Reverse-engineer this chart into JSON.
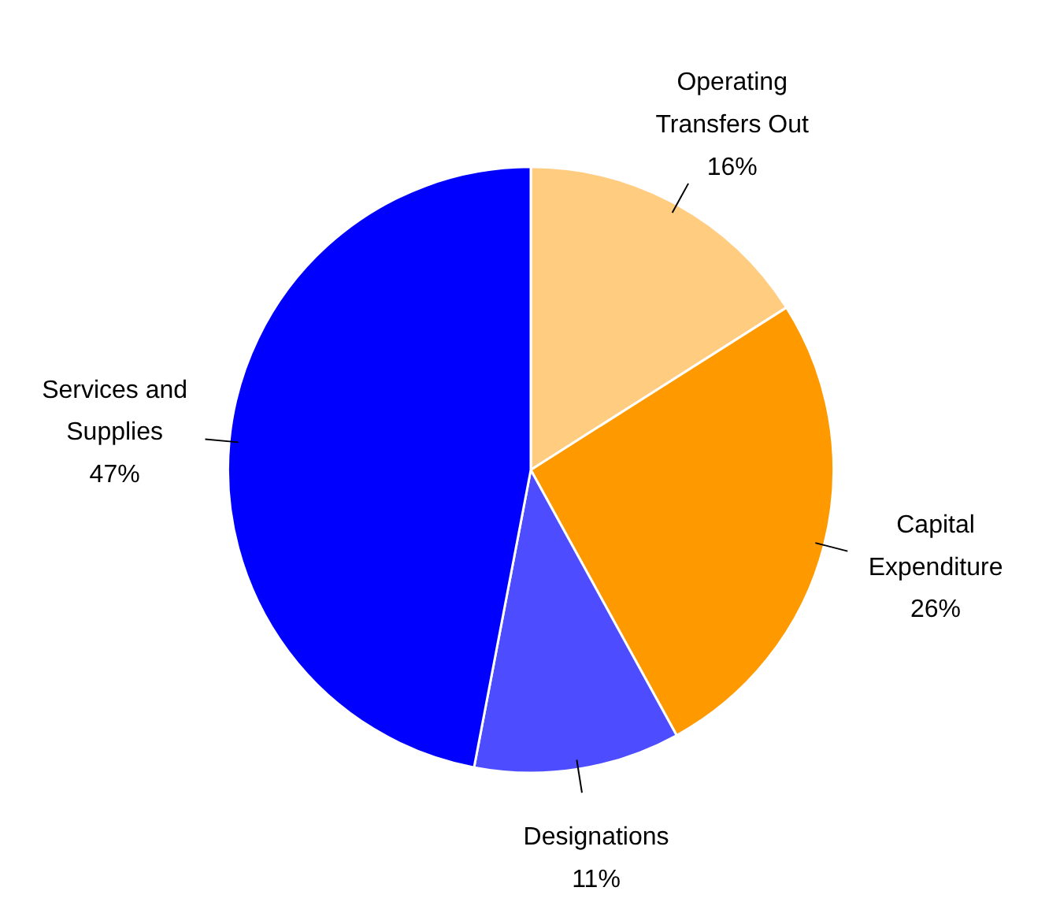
{
  "chart_data": {
    "type": "pie",
    "categories": [
      "Operating Transfers Out",
      "Capital Expenditure",
      "Designations",
      "Services and Supplies"
    ],
    "values": [
      16,
      26,
      11,
      47
    ],
    "colors": [
      "#ffcc80",
      "#ff9900",
      "#4d4dff",
      "#0000ff"
    ],
    "value_labels": [
      "16%",
      "26%",
      "11%",
      "47%"
    ]
  }
}
